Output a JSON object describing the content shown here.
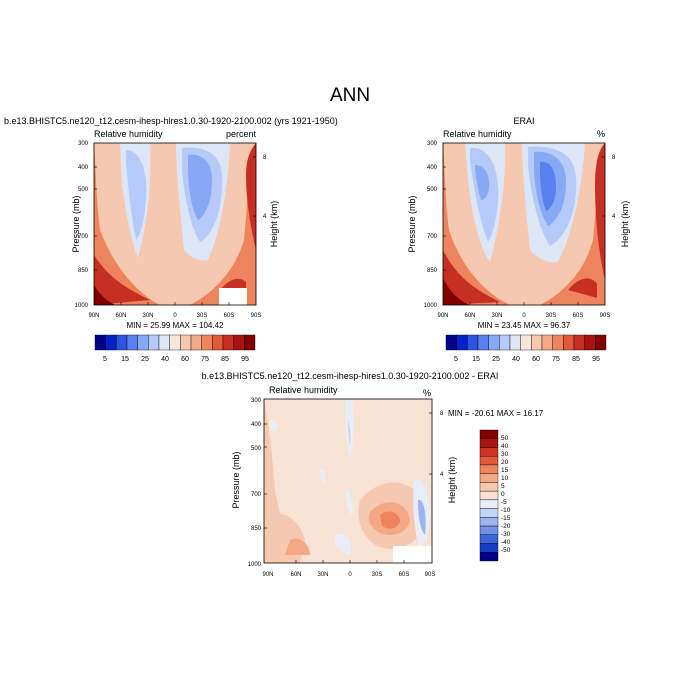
{
  "page_title": "ANN",
  "chart_data": [
    {
      "type": "heatmap",
      "title": "b.e13.BHISTC5.ne120_t12.cesm-ihesp-hires1.0.30-1920-2100.002 (yrs 1921-1950)",
      "left_label": "Relative humidity",
      "right_label": "percent",
      "xlabel": "",
      "ylabel": "Pressure (mb)",
      "y2label": "Height (km)",
      "x_ticks": [
        "90N",
        "60N",
        "30N",
        "0",
        "30S",
        "60S",
        "90S"
      ],
      "y_ticks": [
        "300",
        "400",
        "500",
        "700",
        "850",
        "1000"
      ],
      "y2_ticks": [
        "8",
        "4"
      ],
      "stats": "MIN =  25.99  MAX = 104.42",
      "colorbar_labels": [
        "5",
        "15",
        "25",
        "40",
        "60",
        "75",
        "85",
        "95"
      ],
      "ylim": [
        1000,
        300
      ]
    },
    {
      "type": "heatmap",
      "title": "ERAI",
      "left_label": "Relative humidity",
      "right_label": "%",
      "xlabel": "",
      "ylabel": "Pressure (mb)",
      "y2label": "Height (km)",
      "x_ticks": [
        "90N",
        "60N",
        "30N",
        "0",
        "30S",
        "60S",
        "90S"
      ],
      "y_ticks": [
        "300",
        "400",
        "500",
        "700",
        "850",
        "1000"
      ],
      "y2_ticks": [
        "8",
        "4"
      ],
      "stats": "MIN =  23.45  MAX =  96.37",
      "colorbar_labels": [
        "5",
        "15",
        "25",
        "40",
        "60",
        "75",
        "85",
        "95"
      ],
      "ylim": [
        1000,
        300
      ]
    },
    {
      "type": "heatmap",
      "title": "b.e13.BHISTC5.ne120_t12.cesm-ihesp-hires1.0.30-1920-2100.002 - ERAI",
      "left_label": "Relative humidity",
      "right_label": "%",
      "xlabel": "",
      "ylabel": "Pressure (mb)",
      "y2label": "Height (km)",
      "x_ticks": [
        "90N",
        "60N",
        "30N",
        "0",
        "30S",
        "60S",
        "90S"
      ],
      "y_ticks": [
        "300",
        "400",
        "500",
        "700",
        "850",
        "1000"
      ],
      "y2_ticks": [
        "8",
        "4"
      ],
      "stats": "MIN = -20.61  MAX =  16.17",
      "colorbar_labels": [
        "50",
        "40",
        "30",
        "20",
        "15",
        "10",
        "5",
        "0",
        "-5",
        "-10",
        "-15",
        "-20",
        "-30",
        "-40",
        "-50"
      ],
      "ylim": [
        1000,
        300
      ]
    }
  ],
  "colors": {
    "abs_scale": [
      "#00008b",
      "#0022c8",
      "#2e55e0",
      "#5a80ee",
      "#87a8f5",
      "#b5caf8",
      "#dce6f6",
      "#f7e6da",
      "#f7c8b0",
      "#f5a886",
      "#ee845e",
      "#e2583a",
      "#c72f22",
      "#a51410",
      "#800000"
    ],
    "diff_scale": [
      "#800000",
      "#a81510",
      "#cc3322",
      "#e25a3a",
      "#ef8460",
      "#f5a886",
      "#f7c8b0",
      "#f8e2d4",
      "#e8eef8",
      "#c4d4f4",
      "#9cb4f0",
      "#7090ea",
      "#3e64dc",
      "#1a3cc4",
      "#00008b"
    ]
  }
}
